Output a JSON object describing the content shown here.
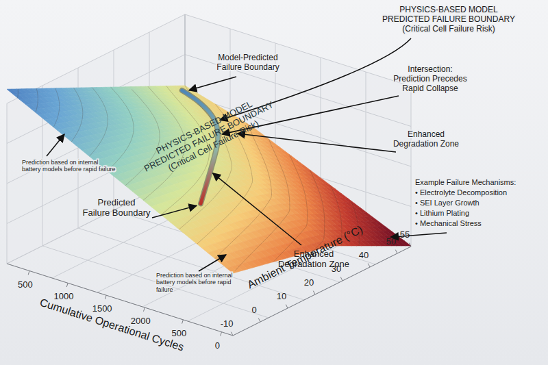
{
  "chart_data": {
    "type": "surface",
    "x_label": "Cumulative Operational Cycles",
    "categories": [
      "500",
      "1000",
      "1500",
      "2000",
      "500",
      "0"
    ],
    "y_label": "Ambient Temperature (°C)",
    "ylim": [
      -10,
      55
    ],
    "yticks": [
      -10,
      0,
      10,
      20,
      30,
      40,
      50,
      55
    ],
    "grid": true,
    "annotations": [
      {
        "lines": [
          "Model-Predicted",
          "Failure Boundary"
        ]
      },
      {
        "lines": [
          "PHYSICS-BASED MODEL",
          "PREDICTED FAILURE BOUNDARY",
          "(Critical Cell Failure Risk)"
        ]
      },
      {
        "lines": [
          "Intersection:",
          "Prediction Precedes",
          "Rapid Collapse"
        ]
      },
      {
        "lines": [
          "Enhanced",
          "Degradation Zone"
        ]
      },
      {
        "lines": [
          "PHYSICS-BASED MODEL",
          "PREDICTED FAILURE BOUNDARY",
          "(Critical Cell Failure Risk)"
        ]
      },
      {
        "lines": [
          "Prediction based on internal",
          "battery models before rapid failure"
        ]
      },
      {
        "lines": [
          "Predicted",
          "Failure Boundary"
        ]
      },
      {
        "lines": [
          "Enhanced",
          "Degradation Zone"
        ]
      },
      {
        "lines": [
          "Prediction based on internal",
          "battery models before rapid",
          "failure"
        ]
      }
    ],
    "mechanisms": {
      "title": "Example Failure Mechanisms:",
      "items": [
        "• Electrolyte Decomposition",
        "• SEI Layer Growth",
        "• Lithium Plating",
        "• Mechanical Stress"
      ]
    }
  }
}
